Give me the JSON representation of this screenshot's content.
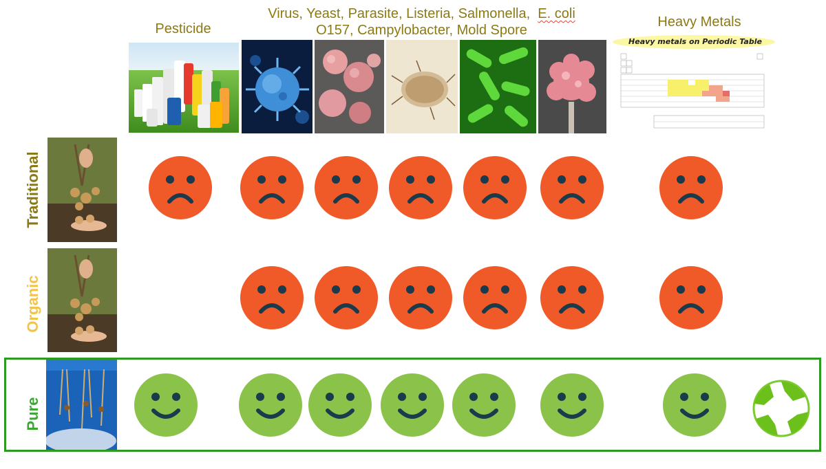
{
  "headers": {
    "pesticide": "Pesticide",
    "microbes_line1": "Virus, Yeast, Parasite, Listeria, Salmonella,",
    "microbes_coli": "E. coli",
    "microbes_line2": "O157, Campylobacter, Mold Spore",
    "heavy_metals": "Heavy Metals",
    "periodic_table_title": "Heavy metals on Periodic Table"
  },
  "rows": [
    {
      "label": "Traditional",
      "label_color": "#8b7a14",
      "result": "sad",
      "pesticide": true
    },
    {
      "label": "Organic",
      "label_color": "#f2c34a",
      "result": "sad",
      "pesticide": false
    },
    {
      "label": "Pure",
      "label_color": "#3aa832",
      "result": "happy",
      "pesticide": true
    }
  ],
  "colors": {
    "sad_face": "#ef5a28",
    "happy_face": "#8bc34a",
    "face_features": "#1b3a4b",
    "pure_border": "#2e9a22",
    "header_text": "#8b7a14"
  },
  "icons": [
    "sad-face-icon",
    "happy-face-icon",
    "recycle-logo-icon"
  ]
}
